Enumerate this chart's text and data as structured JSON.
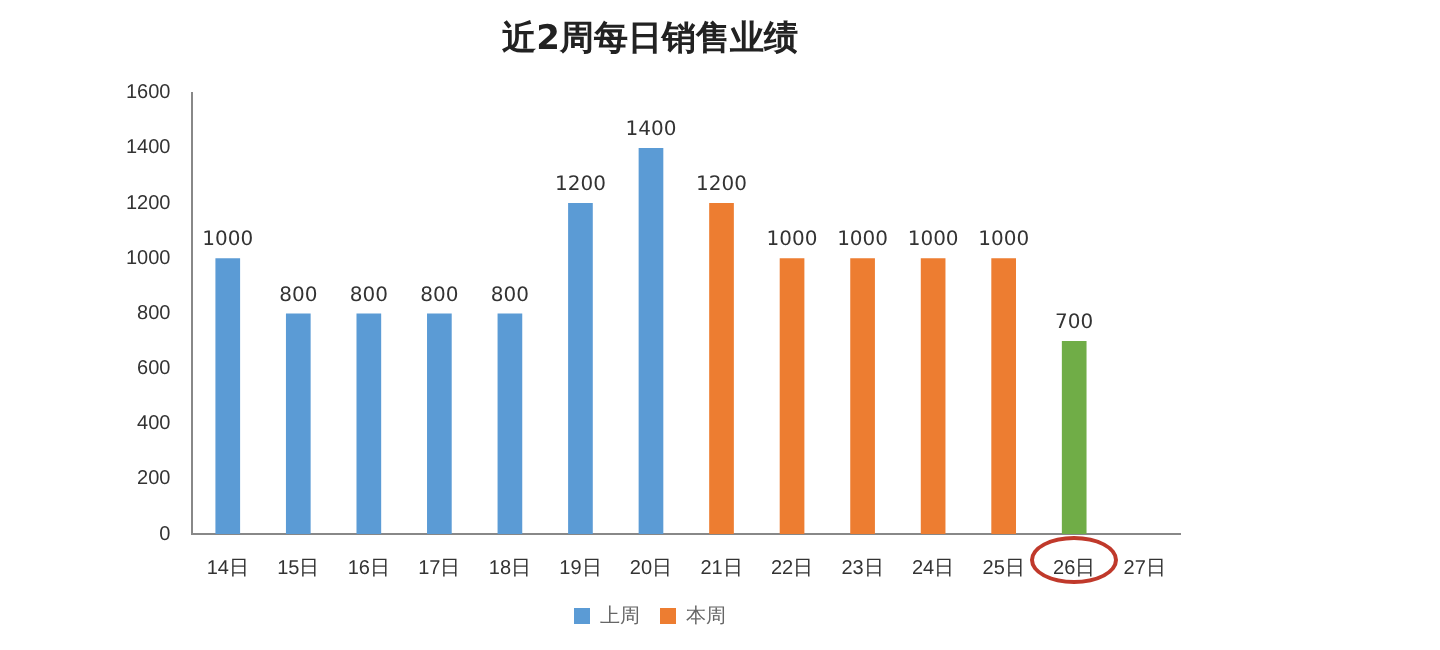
{
  "chart_data": {
    "type": "bar",
    "title": "近2周每日销售业绩",
    "categories": [
      "14日",
      "15日",
      "16日",
      "17日",
      "18日",
      "19日",
      "20日",
      "21日",
      "22日",
      "23日",
      "24日",
      "25日",
      "26日",
      "27日"
    ],
    "series": [
      {
        "name": "上周",
        "color": "#5b9bd5",
        "values": [
          1000,
          800,
          800,
          800,
          800,
          1200,
          1400,
          null,
          null,
          null,
          null,
          null,
          null,
          null
        ]
      },
      {
        "name": "本周",
        "color": "#ed7d31",
        "values": [
          null,
          null,
          null,
          null,
          null,
          null,
          null,
          1200,
          1000,
          1000,
          1000,
          1000,
          null,
          null
        ]
      },
      {
        "color": "#70ad47",
        "values": [
          null,
          null,
          null,
          null,
          null,
          null,
          null,
          null,
          null,
          null,
          null,
          null,
          700,
          null
        ]
      }
    ],
    "ylim": [
      0,
      1600
    ],
    "yticks": [
      0,
      200,
      400,
      600,
      800,
      1000,
      1200,
      1400,
      1600
    ],
    "data_labels": true,
    "grid": false,
    "legend": "bottom"
  }
}
